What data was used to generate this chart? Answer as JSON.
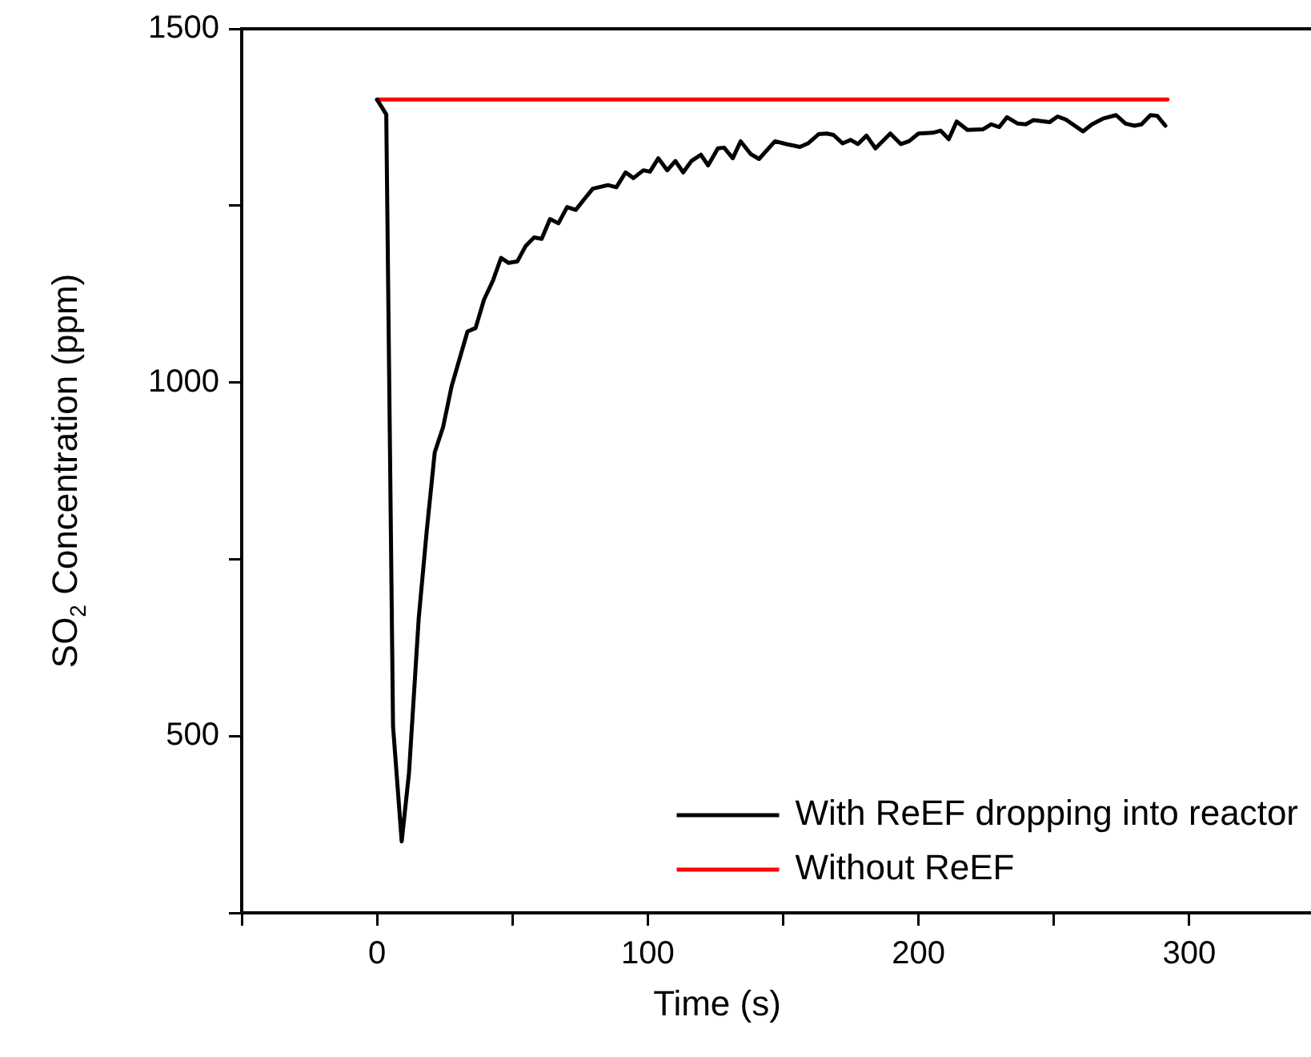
{
  "chart_data": {
    "type": "line",
    "xlabel": "Time (s)",
    "ylabel": "SO$_{2}$ Concentration (ppm)",
    "xlim": [
      -50,
      345
    ],
    "xticks": [
      {
        "value": -50,
        "label": null
      },
      0,
      {
        "value": 50,
        "label": null
      },
      100,
      {
        "value": 150,
        "label": null
      },
      200,
      {
        "value": 250,
        "label": null
      },
      300
    ],
    "ylim": [
      250,
      1500
    ],
    "yticks": [
      {
        "value": 250,
        "label": null
      },
      500,
      {
        "value": 750,
        "label": null
      },
      1000,
      {
        "value": 1250,
        "label": null
      },
      1500
    ],
    "grid": false,
    "legend": "bottom right",
    "marker": "none",
    "line_style": "solid",
    "series": [
      {
        "name": "With ReEF dropping into reactor",
        "color": "#000000",
        "x": [
          0,
          3.4,
          5.9,
          9.1,
          11.8,
          15.4,
          18.3,
          21.3,
          24.4,
          27.5,
          33.4,
          36.4,
          39.5,
          42.7,
          45.8,
          48.6,
          51.8,
          54.9,
          58.0,
          60.8,
          63.9,
          67.0,
          70.2,
          73.4,
          76.3,
          79.7,
          85.3,
          88.4,
          91.8,
          94.7,
          98.4,
          100.8,
          103.9,
          107.2,
          110.2,
          113.1,
          116.1,
          119.6,
          122.3,
          125.9,
          128.2,
          131.4,
          134.3,
          138.0,
          141.1,
          147.0,
          151.3,
          156.2,
          159.2,
          163.1,
          166.1,
          168.6,
          172.0,
          174.9,
          177.6,
          180.8,
          184.1,
          189.6,
          193.5,
          196.5,
          200.0,
          205.3,
          208.2,
          211.2,
          214.1,
          218.1,
          223.9,
          226.9,
          229.8,
          232.7,
          236.7,
          239.6,
          242.5,
          248.4,
          251.4,
          254.3,
          260.8,
          264.1,
          268.1,
          273.0,
          276.5,
          279.8,
          282.4,
          285.7,
          288.2,
          291.2
        ],
        "values": [
          1400,
          1379,
          514,
          351,
          448,
          667,
          788,
          901,
          937,
          994,
          1072,
          1077,
          1117,
          1143,
          1176,
          1169,
          1171,
          1193,
          1205,
          1203,
          1231,
          1225,
          1248,
          1244,
          1258,
          1274,
          1279,
          1276,
          1297,
          1289,
          1300,
          1298,
          1317,
          1300,
          1313,
          1297,
          1313,
          1322,
          1307,
          1331,
          1332,
          1317,
          1341,
          1323,
          1316,
          1341,
          1337,
          1333,
          1338,
          1351,
          1352,
          1350,
          1338,
          1343,
          1337,
          1349,
          1331,
          1352,
          1337,
          1341,
          1352,
          1353,
          1356,
          1344,
          1369,
          1357,
          1358,
          1365,
          1361,
          1375,
          1366,
          1365,
          1371,
          1368,
          1376,
          1372,
          1355,
          1365,
          1373,
          1378,
          1366,
          1363,
          1365,
          1378,
          1377,
          1363
        ]
      },
      {
        "name": "Without ReEF",
        "color": "#ff0000",
        "x": [
          0,
          292
        ],
        "values": [
          1400,
          1400
        ]
      }
    ]
  }
}
